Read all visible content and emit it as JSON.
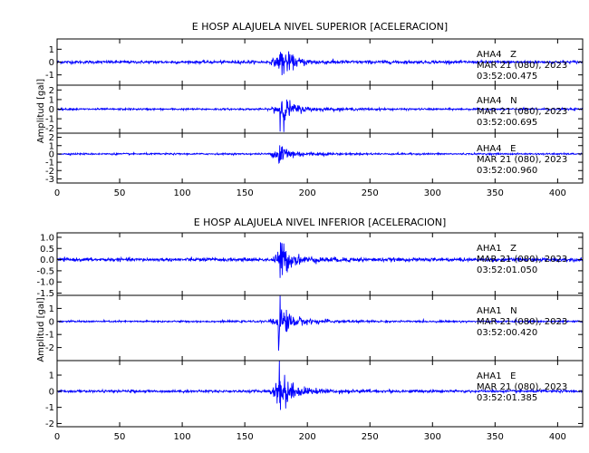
{
  "chart_data": [
    {
      "type": "line",
      "title": "E HOSP ALAJUELA NIVEL SUPERIOR [ACELERACION]",
      "ylabel": "Amplitud [gal]",
      "xlim": [
        0,
        420
      ],
      "x_ticks": [
        "0",
        "50",
        "100",
        "150",
        "200",
        "250",
        "300",
        "350",
        "400"
      ],
      "series": [
        {
          "name": "AHA4   Z",
          "date": "MAR 21 (080), 2023",
          "time": "03:52:00.475",
          "ylim": [
            -1.8,
            1.8
          ],
          "y_ticks": [
            "1",
            "0",
            "-1"
          ],
          "noise_amplitude": 0.12,
          "peak_amplitude": 1.6,
          "peak_time": 178
        },
        {
          "name": "AHA4   N",
          "date": "MAR 21 (080), 2023",
          "time": "03:52:00.695",
          "ylim": [
            -2.5,
            2.5
          ],
          "y_ticks": [
            "2",
            "1",
            "0",
            "-1",
            "-2"
          ],
          "noise_amplitude": 0.1,
          "peak_amplitude": 2.2,
          "peak_time": 178
        },
        {
          "name": "AHA4   E",
          "date": "MAR 21 (080), 2023",
          "time": "03:52:00.960",
          "ylim": [
            -3.5,
            2.5
          ],
          "y_ticks": [
            "2",
            "1",
            "0",
            "-1",
            "-2",
            "-3"
          ],
          "noise_amplitude": 0.1,
          "peak_amplitude": 2.0,
          "peak_time": 177
        }
      ]
    },
    {
      "type": "line",
      "title": "E HOSP ALAJUELA NIVEL INFERIOR [ACELERACION]",
      "ylabel": "Amplitud [gal]",
      "xlim": [
        0,
        420
      ],
      "x_ticks": [
        "0",
        "50",
        "100",
        "150",
        "200",
        "250",
        "300",
        "350",
        "400"
      ],
      "series": [
        {
          "name": "AHA1   Z",
          "date": "MAR 21 (080), 2023",
          "time": "03:52:01.050",
          "ylim": [
            -1.6,
            1.2
          ],
          "y_ticks": [
            "1.0",
            "0.5",
            "0.0",
            "-0.5",
            "-1.0",
            "-1.5"
          ],
          "noise_amplitude": 0.08,
          "peak_amplitude": 1.0,
          "peak_time": 178
        },
        {
          "name": "AHA1   N",
          "date": "MAR 21 (080), 2023",
          "time": "03:52:00.420",
          "ylim": [
            -3.0,
            2.0
          ],
          "y_ticks": [
            "1",
            "0",
            "-1",
            "-2"
          ],
          "noise_amplitude": 0.07,
          "peak_amplitude": 2.0,
          "peak_time": 177
        },
        {
          "name": "AHA1   E",
          "date": "MAR 21 (080), 2023",
          "time": "03:52:01.385",
          "ylim": [
            -2.2,
            1.9
          ],
          "y_ticks": [
            "1",
            "0",
            "-1",
            "-2"
          ],
          "noise_amplitude": 0.08,
          "peak_amplitude": 2.0,
          "peak_time": 177
        }
      ]
    }
  ],
  "colors": {
    "trace": "#0000ff",
    "axes": "#000000",
    "background": "#ffffff"
  }
}
